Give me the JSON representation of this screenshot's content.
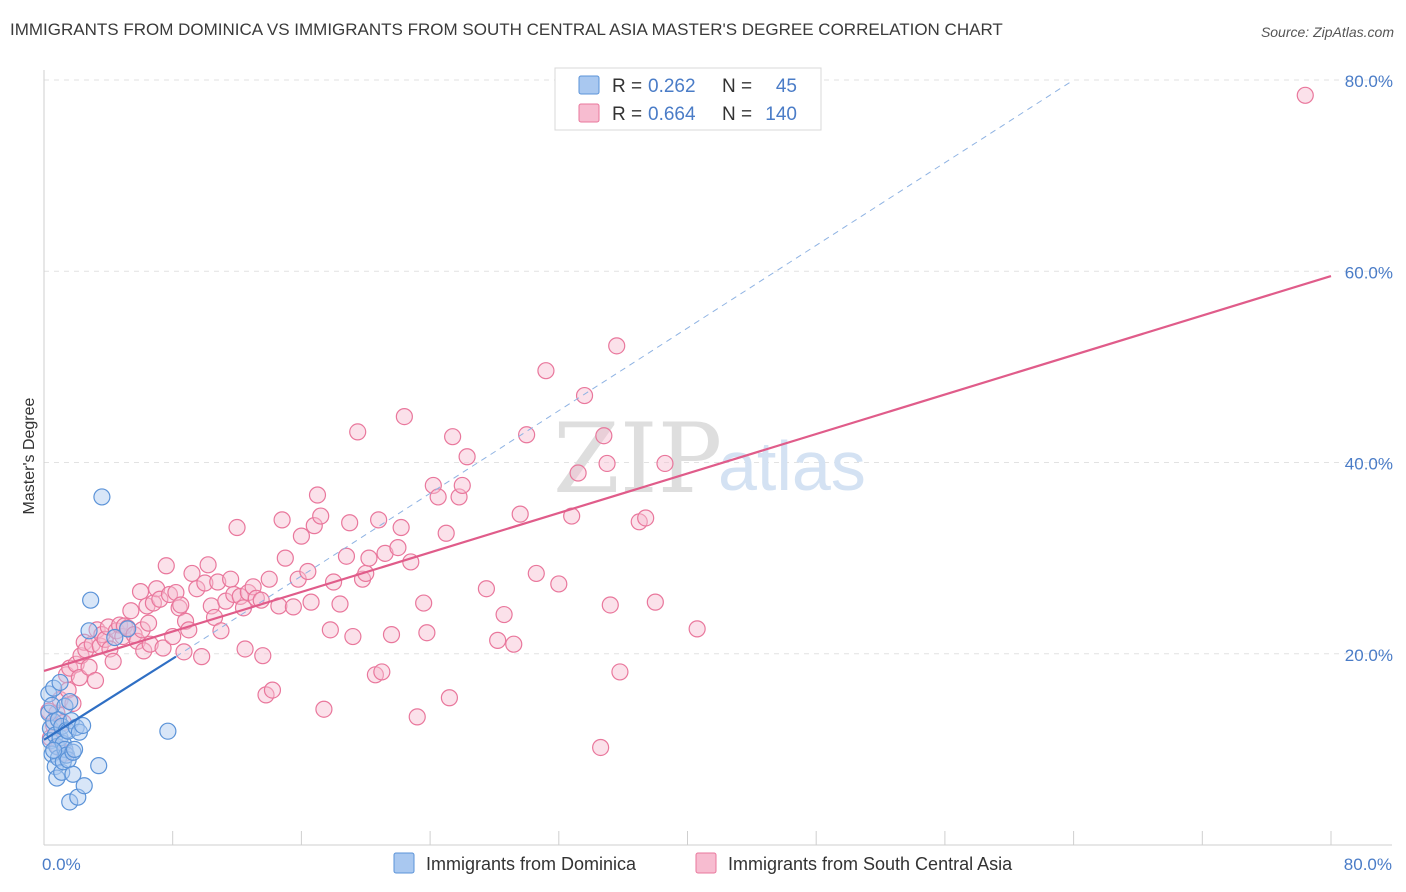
{
  "title": "IMMIGRANTS FROM DOMINICA VS IMMIGRANTS FROM SOUTH CENTRAL ASIA MASTER'S DEGREE CORRELATION CHART",
  "source": "Source: ZipAtlas.com",
  "watermark": {
    "zip": "ZIP",
    "atlas": "atlas"
  },
  "colors": {
    "dominica_fill": "#a9c8f0",
    "dominica_stroke": "#5b93d8",
    "dominica_line": "#2f6fc4",
    "sca_fill": "#f7bcd0",
    "sca_stroke": "#e9779c",
    "sca_line": "#e05c8a",
    "value_text": "#4a7cc7"
  },
  "legend": {
    "rows": [
      {
        "r_label": "R =",
        "r_value": "0.262",
        "n_label": "N =",
        "n_value": "45"
      },
      {
        "r_label": "R =",
        "r_value": "0.664",
        "n_label": "N =",
        "n_value": "140"
      }
    ]
  },
  "chart_data": {
    "type": "scatter",
    "title": "IMMIGRANTS FROM DOMINICA VS IMMIGRANTS FROM SOUTH CENTRAL ASIA MASTER'S DEGREE CORRELATION CHART",
    "xlabel": "",
    "ylabel": "Master's Degree",
    "xlim": [
      0,
      80
    ],
    "ylim": [
      0,
      80
    ],
    "x_tick_labels": [
      "0.0%",
      "80.0%"
    ],
    "y_tick_labels": [
      "20.0%",
      "40.0%",
      "60.0%",
      "80.0%"
    ],
    "y_ticks": [
      20,
      40,
      60,
      80
    ],
    "grid": true,
    "legend_position": "top-center",
    "series": [
      {
        "name": "Immigrants from Dominica",
        "r": 0.262,
        "n": 45,
        "trend": {
          "x": [
            0,
            8.2
          ],
          "y": [
            11.0,
            19.7
          ]
        },
        "trend_extended": {
          "x": [
            8.2,
            64
          ],
          "y": [
            19.7,
            80.0
          ]
        },
        "points": [
          [
            0.3,
            15.8
          ],
          [
            0.3,
            13.8
          ],
          [
            0.4,
            12.2
          ],
          [
            0.4,
            10.9
          ],
          [
            0.5,
            14.6
          ],
          [
            0.5,
            9.5
          ],
          [
            0.6,
            16.4
          ],
          [
            0.6,
            12.9
          ],
          [
            0.7,
            11.5
          ],
          [
            0.7,
            8.2
          ],
          [
            0.8,
            10.3
          ],
          [
            0.8,
            7.0
          ],
          [
            0.9,
            13.1
          ],
          [
            0.9,
            9.1
          ],
          [
            1.0,
            17.0
          ],
          [
            1.0,
            11.2
          ],
          [
            1.1,
            12.4
          ],
          [
            1.1,
            7.6
          ],
          [
            1.2,
            10.6
          ],
          [
            1.2,
            8.7
          ],
          [
            1.3,
            14.5
          ],
          [
            1.3,
            10.0
          ],
          [
            1.4,
            12.0
          ],
          [
            1.4,
            9.4
          ],
          [
            1.5,
            11.9
          ],
          [
            1.5,
            8.9
          ],
          [
            1.6,
            15.0
          ],
          [
            1.6,
            4.5
          ],
          [
            1.7,
            13.0
          ],
          [
            1.8,
            9.7
          ],
          [
            1.8,
            7.4
          ],
          [
            1.9,
            10.0
          ],
          [
            2.0,
            12.3
          ],
          [
            2.1,
            5.0
          ],
          [
            2.2,
            11.8
          ],
          [
            2.4,
            12.5
          ],
          [
            2.5,
            6.2
          ],
          [
            2.8,
            22.4
          ],
          [
            2.9,
            25.6
          ],
          [
            3.4,
            8.3
          ],
          [
            3.6,
            36.4
          ],
          [
            4.4,
            21.7
          ],
          [
            5.2,
            22.6
          ],
          [
            7.7,
            11.9
          ],
          [
            0.6,
            9.9
          ]
        ]
      },
      {
        "name": "Immigrants from South Central Asia",
        "r": 0.664,
        "n": 140,
        "trend": {
          "x": [
            0,
            80
          ],
          "y": [
            18.2,
            59.5
          ]
        },
        "points": [
          [
            0.3,
            14.0
          ],
          [
            0.4,
            11.2
          ],
          [
            0.6,
            12.5
          ],
          [
            0.8,
            13.8
          ],
          [
            0.9,
            10.2
          ],
          [
            1.0,
            15.2
          ],
          [
            1.2,
            12.8
          ],
          [
            1.3,
            9.6
          ],
          [
            1.4,
            17.8
          ],
          [
            1.5,
            16.2
          ],
          [
            1.6,
            18.5
          ],
          [
            1.8,
            14.8
          ],
          [
            2.0,
            18.9
          ],
          [
            2.2,
            17.5
          ],
          [
            2.3,
            19.8
          ],
          [
            2.5,
            21.2
          ],
          [
            2.6,
            20.4
          ],
          [
            2.8,
            18.6
          ],
          [
            3.0,
            21.0
          ],
          [
            3.2,
            17.2
          ],
          [
            3.3,
            22.5
          ],
          [
            3.5,
            20.8
          ],
          [
            3.6,
            22.0
          ],
          [
            3.8,
            21.5
          ],
          [
            4.0,
            22.8
          ],
          [
            4.1,
            20.5
          ],
          [
            4.3,
            19.2
          ],
          [
            4.5,
            22.4
          ],
          [
            4.7,
            23.0
          ],
          [
            4.9,
            21.8
          ],
          [
            5.0,
            22.9
          ],
          [
            5.2,
            22.7
          ],
          [
            5.4,
            24.5
          ],
          [
            5.6,
            22.0
          ],
          [
            5.8,
            21.3
          ],
          [
            6.0,
            26.5
          ],
          [
            6.1,
            22.5
          ],
          [
            6.2,
            20.3
          ],
          [
            6.4,
            25.0
          ],
          [
            6.5,
            23.2
          ],
          [
            6.6,
            21.0
          ],
          [
            6.8,
            25.3
          ],
          [
            7.0,
            26.8
          ],
          [
            7.2,
            25.7
          ],
          [
            7.4,
            20.6
          ],
          [
            7.6,
            29.2
          ],
          [
            7.8,
            26.2
          ],
          [
            8.0,
            21.8
          ],
          [
            8.2,
            26.4
          ],
          [
            8.4,
            24.8
          ],
          [
            8.5,
            25.1
          ],
          [
            8.7,
            20.2
          ],
          [
            8.8,
            23.4
          ],
          [
            9.0,
            22.5
          ],
          [
            9.2,
            28.4
          ],
          [
            9.5,
            26.8
          ],
          [
            9.8,
            19.7
          ],
          [
            10.0,
            27.4
          ],
          [
            10.2,
            29.3
          ],
          [
            10.4,
            25.0
          ],
          [
            10.6,
            23.8
          ],
          [
            10.8,
            27.5
          ],
          [
            11.0,
            22.4
          ],
          [
            11.3,
            25.5
          ],
          [
            11.6,
            27.8
          ],
          [
            11.8,
            26.2
          ],
          [
            12.0,
            33.2
          ],
          [
            12.2,
            26.0
          ],
          [
            12.4,
            24.8
          ],
          [
            12.5,
            20.5
          ],
          [
            12.7,
            26.4
          ],
          [
            13.0,
            27.0
          ],
          [
            13.2,
            25.8
          ],
          [
            13.5,
            25.6
          ],
          [
            13.6,
            19.8
          ],
          [
            13.8,
            15.7
          ],
          [
            14.0,
            27.8
          ],
          [
            14.2,
            16.2
          ],
          [
            14.6,
            25.0
          ],
          [
            14.8,
            34.0
          ],
          [
            15.0,
            30.0
          ],
          [
            15.5,
            24.9
          ],
          [
            15.8,
            27.8
          ],
          [
            16.0,
            32.3
          ],
          [
            16.4,
            28.6
          ],
          [
            16.6,
            25.4
          ],
          [
            16.8,
            33.4
          ],
          [
            17.0,
            36.6
          ],
          [
            17.2,
            34.4
          ],
          [
            17.4,
            14.2
          ],
          [
            17.8,
            22.5
          ],
          [
            18.0,
            27.5
          ],
          [
            18.4,
            25.2
          ],
          [
            18.8,
            30.2
          ],
          [
            19.0,
            33.7
          ],
          [
            19.2,
            21.8
          ],
          [
            19.5,
            43.2
          ],
          [
            19.8,
            27.8
          ],
          [
            20.0,
            28.4
          ],
          [
            20.2,
            30.0
          ],
          [
            20.6,
            17.8
          ],
          [
            20.8,
            34.0
          ],
          [
            21.0,
            18.1
          ],
          [
            21.2,
            30.5
          ],
          [
            21.6,
            22.0
          ],
          [
            22.0,
            31.1
          ],
          [
            22.2,
            33.2
          ],
          [
            22.4,
            44.8
          ],
          [
            22.8,
            29.6
          ],
          [
            23.2,
            13.4
          ],
          [
            23.6,
            25.3
          ],
          [
            23.8,
            22.2
          ],
          [
            24.2,
            37.6
          ],
          [
            24.5,
            36.4
          ],
          [
            25.0,
            32.6
          ],
          [
            25.2,
            15.4
          ],
          [
            25.4,
            42.7
          ],
          [
            25.8,
            36.4
          ],
          [
            26.0,
            37.6
          ],
          [
            26.3,
            40.6
          ],
          [
            27.5,
            26.8
          ],
          [
            28.2,
            21.4
          ],
          [
            28.6,
            24.1
          ],
          [
            29.2,
            21.0
          ],
          [
            29.6,
            34.6
          ],
          [
            30.0,
            42.9
          ],
          [
            30.6,
            28.4
          ],
          [
            31.2,
            49.6
          ],
          [
            32.0,
            27.3
          ],
          [
            32.8,
            34.4
          ],
          [
            33.2,
            38.9
          ],
          [
            33.6,
            47.0
          ],
          [
            34.6,
            10.2
          ],
          [
            34.8,
            42.8
          ],
          [
            35.0,
            39.9
          ],
          [
            35.2,
            25.1
          ],
          [
            35.6,
            52.2
          ],
          [
            35.8,
            18.1
          ],
          [
            37.0,
            33.8
          ],
          [
            37.4,
            34.2
          ],
          [
            38.0,
            25.4
          ],
          [
            38.6,
            39.9
          ],
          [
            40.6,
            22.6
          ],
          [
            78.4,
            78.4
          ]
        ]
      }
    ]
  },
  "bottom_legend": [
    {
      "label": "Immigrants from Dominica"
    },
    {
      "label": "Immigrants from South Central Asia"
    }
  ]
}
